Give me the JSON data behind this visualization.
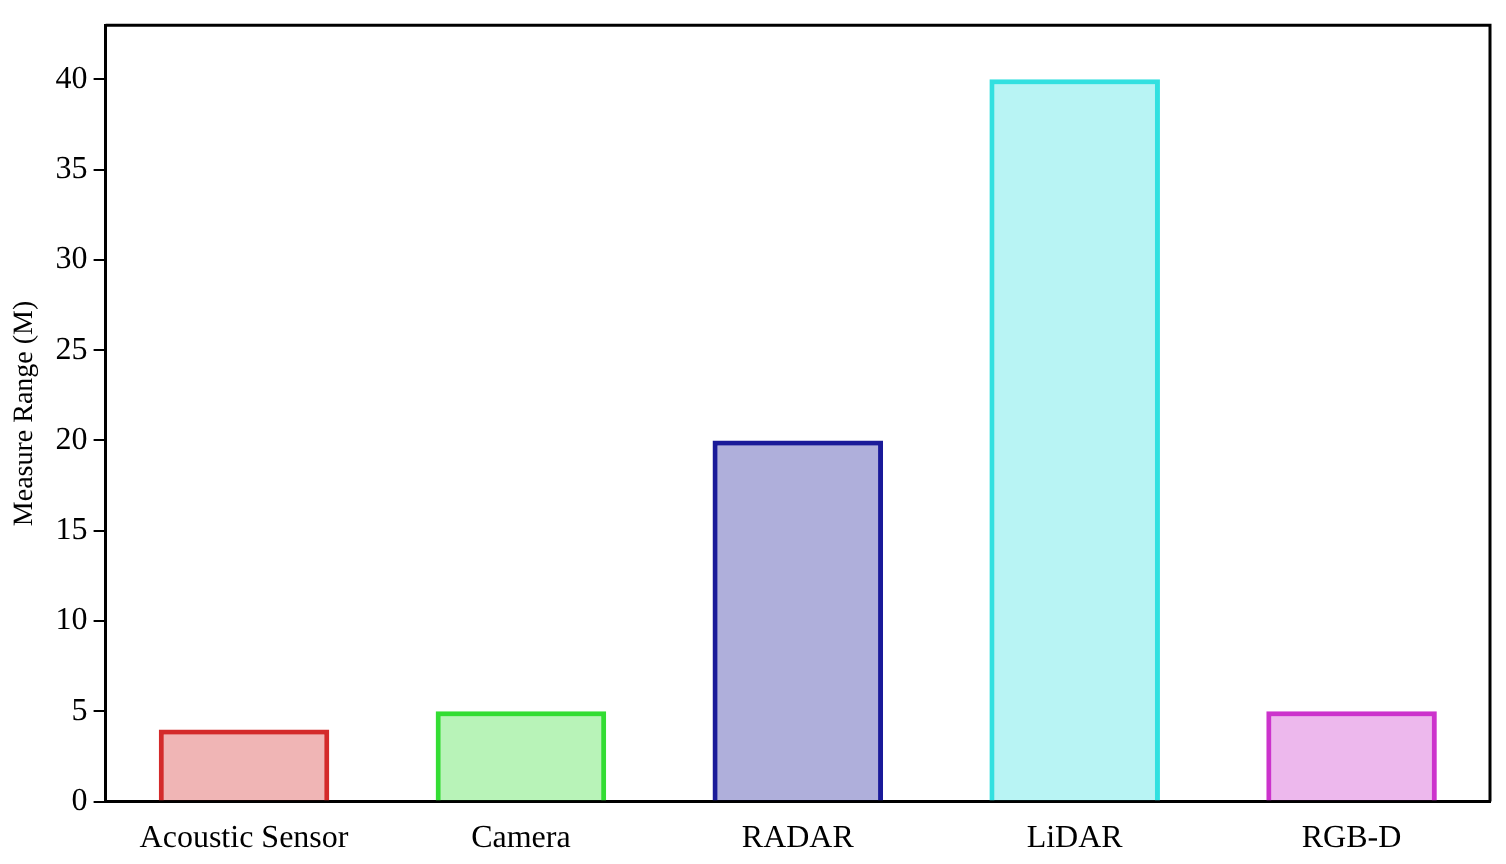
{
  "chart_data": {
    "type": "bar",
    "ylabel": "Measure Range (M)",
    "categories": [
      "Acoustic Sensor",
      "Camera",
      "RADAR",
      "LiDAR",
      "RGB-D"
    ],
    "values": [
      4,
      5,
      20,
      40,
      5
    ],
    "colors": [
      "#d42a2a",
      "#33dd33",
      "#1a1a99",
      "#33e0e0",
      "#cc33cc"
    ],
    "ylim": [
      0,
      43
    ],
    "yticks": [
      0,
      5,
      10,
      15,
      20,
      25,
      30,
      35,
      40
    ],
    "grid": false,
    "legend": false
  }
}
